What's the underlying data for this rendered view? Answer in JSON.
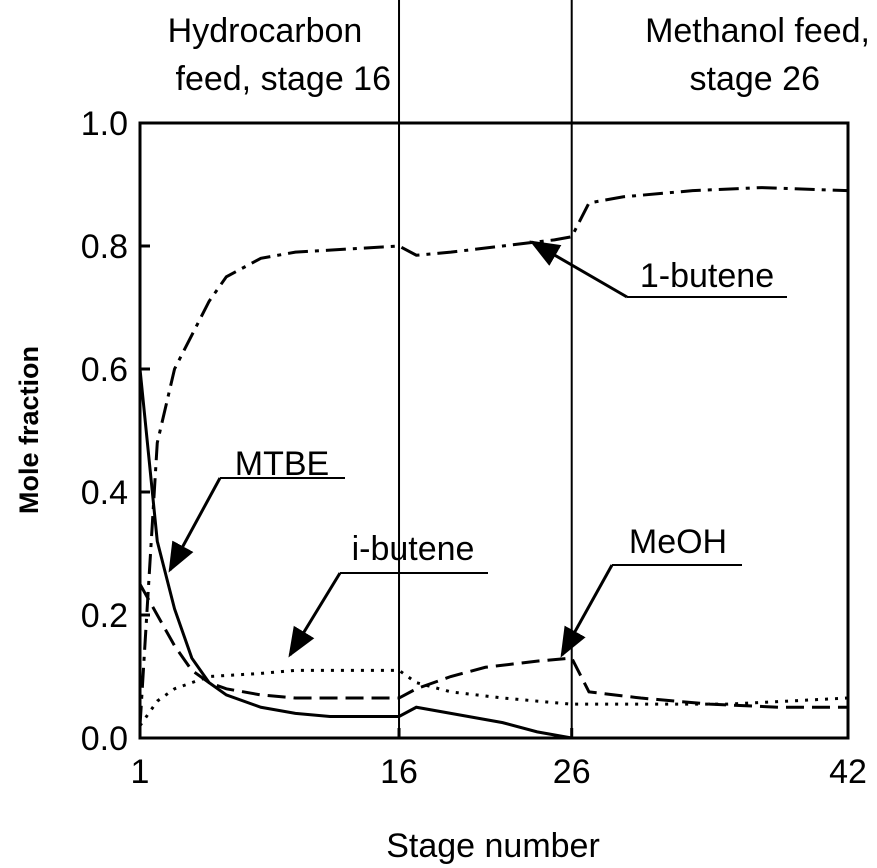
{
  "chart_data": {
    "type": "line",
    "xlabel": "Stage number",
    "ylabel": "Mole fraction",
    "xlim": [
      1,
      42
    ],
    "xticks": [
      1,
      16,
      26,
      42
    ],
    "ylim": [
      0,
      1
    ],
    "yticks": [
      {
        "value": 0,
        "label": "0.0"
      },
      0.2,
      0.4,
      0.6,
      0.8,
      {
        "value": 1,
        "label": "1.0"
      }
    ],
    "vlines": [
      16,
      26
    ],
    "annotations": [
      [
        "Hydrocarbon",
        "feed, stage 16"
      ],
      [
        "Methanol feed,",
        "stage 26"
      ]
    ],
    "series": [
      {
        "name": "MTBE",
        "color": "#000000",
        "style": "solid",
        "x": [
          1,
          2,
          3,
          4,
          5,
          6,
          8,
          10,
          12,
          16,
          17,
          19,
          22,
          24,
          26,
          42
        ],
        "values": [
          0.6,
          0.32,
          0.21,
          0.13,
          0.09,
          0.07,
          0.05,
          0.04,
          0.035,
          0.035,
          0.05,
          0.04,
          0.025,
          0.01,
          0.0,
          0.0
        ]
      },
      {
        "name": "i-butene",
        "color": "#000000",
        "style": "dotted",
        "x": [
          1,
          2,
          3,
          5,
          8,
          10,
          16,
          17,
          19,
          22,
          26,
          30,
          35,
          42
        ],
        "values": [
          0.02,
          0.06,
          0.08,
          0.1,
          0.105,
          0.11,
          0.11,
          0.09,
          0.075,
          0.065,
          0.055,
          0.055,
          0.055,
          0.065
        ]
      },
      {
        "name": "MeOH",
        "color": "#000000",
        "style": "dashed",
        "x": [
          1,
          2,
          3,
          4,
          5,
          6,
          8,
          10,
          16,
          17,
          19,
          21,
          24,
          26,
          27,
          30,
          34,
          38,
          42
        ],
        "values": [
          0.25,
          0.2,
          0.15,
          0.11,
          0.09,
          0.08,
          0.07,
          0.065,
          0.065,
          0.08,
          0.1,
          0.115,
          0.125,
          0.13,
          0.075,
          0.065,
          0.055,
          0.05,
          0.05
        ]
      },
      {
        "name": "1-butene",
        "color": "#000000",
        "style": "dashdot",
        "x": [
          1,
          2,
          3,
          5,
          6,
          8,
          10,
          16,
          17,
          19,
          22,
          25,
          26,
          27,
          29,
          33,
          37,
          42
        ],
        "values": [
          0.02,
          0.48,
          0.6,
          0.71,
          0.75,
          0.78,
          0.79,
          0.8,
          0.785,
          0.79,
          0.8,
          0.81,
          0.815,
          0.87,
          0.88,
          0.89,
          0.895,
          0.89
        ]
      }
    ]
  }
}
